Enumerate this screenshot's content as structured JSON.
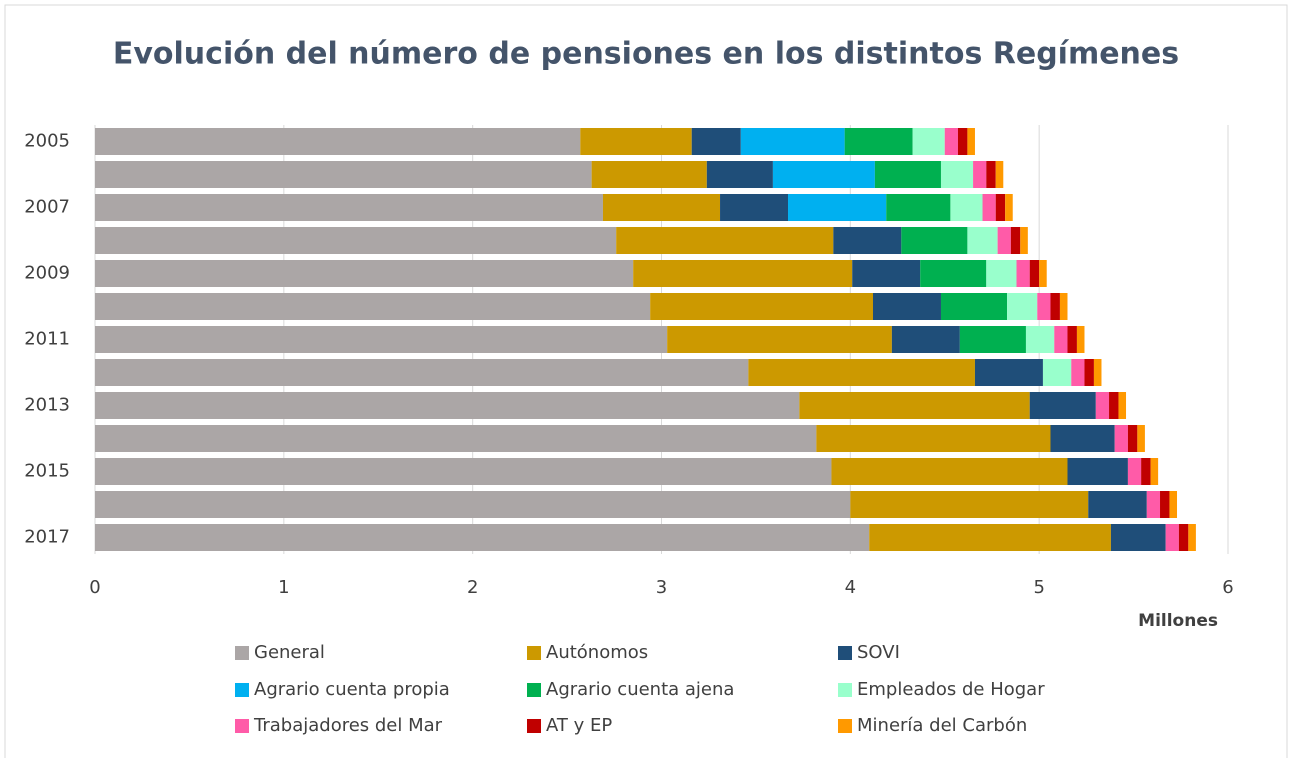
{
  "chart_data": {
    "type": "stacked_bar_horizontal",
    "title": "Evolución del número de pensiones en los distintos Regímenes",
    "x_axis_label": "Millones",
    "categories": [
      "2005",
      null,
      "2007",
      null,
      "2009",
      null,
      "2011",
      null,
      "2013",
      null,
      "2015",
      null,
      "2017"
    ],
    "series": [
      {
        "name": "General",
        "color": "#aba6a6",
        "values": [
          2.57,
          2.63,
          2.69,
          2.76,
          2.85,
          2.94,
          3.03,
          3.46,
          3.73,
          3.82,
          3.9,
          4.0,
          4.1
        ]
      },
      {
        "name": "Autónomos",
        "color": "#cc9900",
        "values": [
          0.59,
          0.61,
          0.62,
          1.15,
          1.16,
          1.18,
          1.19,
          1.2,
          1.22,
          1.24,
          1.25,
          1.26,
          1.28
        ]
      },
      {
        "name": "SOVI",
        "color": "#1f4e79",
        "values": [
          0.26,
          0.35,
          0.36,
          0.36,
          0.36,
          0.36,
          0.36,
          0.36,
          0.35,
          0.34,
          0.32,
          0.31,
          0.29
        ]
      },
      {
        "name": "Agrario cuenta propia",
        "color": "#00b0f0",
        "values": [
          0.55,
          0.54,
          0.52,
          0,
          0,
          0,
          0,
          0,
          0,
          0,
          0,
          0,
          0
        ]
      },
      {
        "name": "Agrario cuenta ajena",
        "color": "#00b050",
        "values": [
          0.36,
          0.35,
          0.34,
          0.35,
          0.35,
          0.35,
          0.35,
          0,
          0,
          0,
          0,
          0,
          0
        ]
      },
      {
        "name": "Empleados de Hogar",
        "color": "#99ffcc",
        "values": [
          0.17,
          0.17,
          0.17,
          0.16,
          0.16,
          0.16,
          0.15,
          0.15,
          0,
          0,
          0,
          0,
          0
        ]
      },
      {
        "name": "Trabajadores del Mar",
        "color": "#ff5ba8",
        "values": [
          0.07,
          0.07,
          0.07,
          0.07,
          0.07,
          0.07,
          0.07,
          0.07,
          0.07,
          0.07,
          0.07,
          0.07,
          0.07
        ]
      },
      {
        "name": "AT y EP",
        "color": "#c00000",
        "values": [
          0.05,
          0.05,
          0.05,
          0.05,
          0.05,
          0.05,
          0.05,
          0.05,
          0.05,
          0.05,
          0.05,
          0.05,
          0.05
        ]
      },
      {
        "name": "Minería del Carbón",
        "color": "#ff9900",
        "values": [
          0.04,
          0.04,
          0.04,
          0.04,
          0.04,
          0.04,
          0.04,
          0.04,
          0.04,
          0.04,
          0.04,
          0.04,
          0.04
        ]
      }
    ],
    "xlim": [
      0,
      6
    ],
    "xticks": [
      0,
      1,
      2,
      3,
      4,
      5,
      6
    ],
    "grid": true,
    "legend_position": "bottom"
  }
}
